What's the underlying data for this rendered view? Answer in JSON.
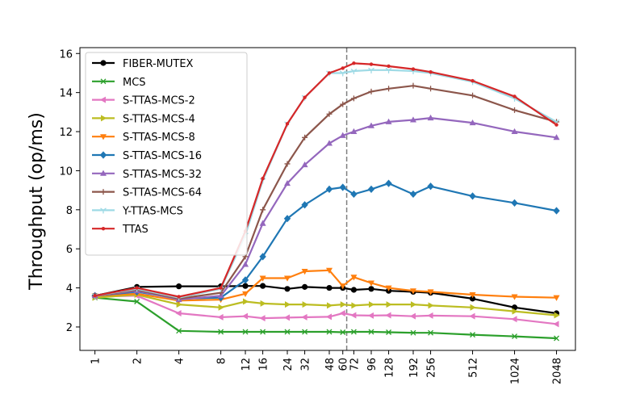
{
  "chart_data": {
    "type": "line",
    "title": "",
    "xlabel": "",
    "ylabel": "Throughput (op/ms)",
    "ylim": [
      0.8,
      16.3
    ],
    "y_ticks": [
      2,
      4,
      6,
      8,
      10,
      12,
      14,
      16
    ],
    "categories": [
      "1",
      "2",
      "4",
      "8",
      "12",
      "16",
      "24",
      "32",
      "48",
      "60",
      "72",
      "96",
      "128",
      "192",
      "256",
      "512",
      "1024",
      "2048"
    ],
    "x": [
      1,
      2,
      4,
      8,
      12,
      16,
      24,
      32,
      48,
      60,
      72,
      96,
      128,
      192,
      256,
      512,
      1024,
      2048
    ],
    "vline_x": 64,
    "legend_position": "upper-left",
    "grid": false,
    "series": [
      {
        "name": "FIBER-MUTEX",
        "color": "#000000",
        "marker": "circle",
        "x": [
          1,
          2,
          4,
          8,
          12,
          16,
          24,
          32,
          48,
          60,
          72,
          96,
          128,
          192,
          256,
          512,
          1024,
          2048
        ],
        "values": [
          3.6,
          4.05,
          4.08,
          4.08,
          4.1,
          4.1,
          3.95,
          4.05,
          4.0,
          4.0,
          3.9,
          3.95,
          3.85,
          3.8,
          3.75,
          3.45,
          3.0,
          2.7
        ]
      },
      {
        "name": "MCS",
        "color": "#2ca02c",
        "marker": "x",
        "x": [
          1,
          2,
          4,
          8,
          12,
          16,
          24,
          32,
          48,
          60,
          72,
          96,
          128,
          192,
          256,
          512,
          1024,
          2048
        ],
        "values": [
          3.5,
          3.3,
          1.8,
          1.75,
          1.75,
          1.75,
          1.75,
          1.75,
          1.75,
          1.73,
          1.75,
          1.75,
          1.73,
          1.7,
          1.7,
          1.6,
          1.52,
          1.42
        ]
      },
      {
        "name": "S-TTAS-MCS-2",
        "color": "#e377c2",
        "marker": "triangle-left",
        "x": [
          1,
          2,
          4,
          8,
          12,
          16,
          24,
          32,
          48,
          60,
          72,
          96,
          128,
          192,
          256,
          512,
          1024,
          2048
        ],
        "values": [
          3.55,
          3.6,
          2.7,
          2.5,
          2.55,
          2.45,
          2.48,
          2.5,
          2.52,
          2.7,
          2.6,
          2.58,
          2.6,
          2.55,
          2.58,
          2.55,
          2.4,
          2.15
        ]
      },
      {
        "name": "S-TTAS-MCS-4",
        "color": "#bcbd22",
        "marker": "triangle-right",
        "x": [
          1,
          2,
          4,
          8,
          12,
          16,
          24,
          32,
          48,
          60,
          72,
          96,
          128,
          192,
          256,
          512,
          1024,
          2048
        ],
        "values": [
          3.5,
          3.65,
          3.15,
          3.0,
          3.3,
          3.2,
          3.15,
          3.15,
          3.1,
          3.15,
          3.1,
          3.15,
          3.15,
          3.15,
          3.1,
          3.0,
          2.8,
          2.6
        ]
      },
      {
        "name": "S-TTAS-MCS-8",
        "color": "#ff7f0e",
        "marker": "triangle-down",
        "x": [
          1,
          2,
          4,
          8,
          12,
          16,
          24,
          32,
          48,
          60,
          72,
          96,
          128,
          192,
          256,
          512,
          1024,
          2048
        ],
        "values": [
          3.6,
          3.7,
          3.35,
          3.4,
          3.7,
          4.5,
          4.5,
          4.85,
          4.9,
          4.1,
          4.55,
          4.25,
          4.0,
          3.85,
          3.8,
          3.65,
          3.55,
          3.5
        ]
      },
      {
        "name": "S-TTAS-MCS-16",
        "color": "#1f77b4",
        "marker": "diamond",
        "x": [
          1,
          2,
          4,
          8,
          12,
          16,
          24,
          32,
          48,
          60,
          72,
          96,
          128,
          192,
          256,
          512,
          1024,
          2048
        ],
        "values": [
          3.6,
          3.8,
          3.45,
          3.5,
          4.4,
          5.6,
          7.55,
          8.25,
          9.05,
          9.15,
          8.8,
          9.05,
          9.35,
          8.8,
          9.2,
          8.7,
          8.35,
          7.95
        ]
      },
      {
        "name": "S-TTAS-MCS-32",
        "color": "#9467bd",
        "marker": "triangle-up",
        "x": [
          1,
          2,
          4,
          8,
          12,
          16,
          24,
          32,
          48,
          60,
          72,
          96,
          128,
          192,
          256,
          512,
          1024,
          2048
        ],
        "values": [
          3.6,
          3.85,
          3.4,
          3.6,
          5.2,
          7.3,
          9.35,
          10.3,
          11.4,
          11.8,
          12.0,
          12.3,
          12.5,
          12.6,
          12.7,
          12.45,
          12.0,
          11.7
        ]
      },
      {
        "name": "S-TTAS-MCS-64",
        "color": "#8c564b",
        "marker": "plus",
        "x": [
          1,
          2,
          4,
          8,
          12,
          16,
          24,
          32,
          48,
          60,
          72,
          96,
          128,
          192,
          256,
          512,
          1024,
          2048
        ],
        "values": [
          3.6,
          3.9,
          3.45,
          3.75,
          5.6,
          8.0,
          10.35,
          11.7,
          12.9,
          13.4,
          13.7,
          14.05,
          14.2,
          14.35,
          14.2,
          13.85,
          13.1,
          12.5
        ]
      },
      {
        "name": "Y-TTAS-MCS",
        "color": "#9edae5",
        "marker": "tri",
        "x": [
          1,
          2,
          4,
          8,
          12,
          16,
          24,
          32,
          48,
          60,
          72,
          96,
          128,
          192,
          256,
          512,
          1024,
          2048
        ],
        "values": [
          3.6,
          3.95,
          3.5,
          3.95,
          6.7,
          9.5,
          12.4,
          13.75,
          15.0,
          15.0,
          15.1,
          15.15,
          15.15,
          15.1,
          15.0,
          14.55,
          13.7,
          12.5
        ]
      },
      {
        "name": "TTAS",
        "color": "#d62728",
        "marker": "point",
        "x": [
          1,
          2,
          4,
          8,
          12,
          16,
          24,
          32,
          48,
          60,
          72,
          96,
          128,
          192,
          256,
          512,
          1024,
          2048
        ],
        "values": [
          3.6,
          4.0,
          3.55,
          4.0,
          6.9,
          9.6,
          12.4,
          13.75,
          15.0,
          15.25,
          15.5,
          15.45,
          15.35,
          15.2,
          15.05,
          14.6,
          13.8,
          12.35
        ]
      }
    ]
  }
}
